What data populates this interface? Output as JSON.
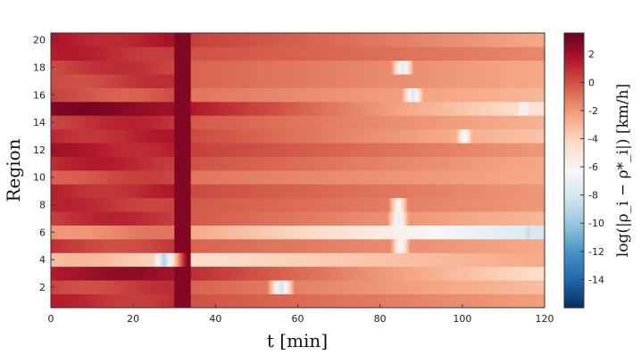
{
  "chart_data": {
    "type": "heatmap",
    "xlabel": "t [min]",
    "ylabel": "Region",
    "colorbar_label": "log(|ρ_i − ρ*_i|) [km/h]",
    "xlim": [
      0,
      120
    ],
    "ylim": [
      0.5,
      20.5
    ],
    "x_ticks": [
      0,
      20,
      40,
      60,
      80,
      100,
      120
    ],
    "y_ticks": [
      2,
      4,
      6,
      8,
      10,
      12,
      14,
      16,
      18,
      20
    ],
    "color_range": [
      -16,
      3.5
    ],
    "colorbar_ticks": [
      2,
      0,
      -2,
      -4,
      -6,
      -8,
      -10,
      -12,
      -14
    ],
    "colormap": [
      "#053061",
      "#2166ac",
      "#4393c3",
      "#92c5de",
      "#d1e5f0",
      "#f7f7f7",
      "#fddbc7",
      "#f4a582",
      "#d6604d",
      "#b2182b",
      "#67001f"
    ],
    "regions": [
      {
        "region": 1,
        "start": 1.0,
        "end": -2.2,
        "dips": []
      },
      {
        "region": 2,
        "start": 0.5,
        "end": -3.2,
        "dips": [
          [
            56,
            -8.5
          ]
        ]
      },
      {
        "region": 3,
        "start": 2.0,
        "end": -4.5,
        "dips": []
      },
      {
        "region": 4,
        "start": -3.5,
        "end": -2.5,
        "dips": [
          [
            27.5,
            -9.5
          ]
        ]
      },
      {
        "region": 5,
        "start": 0.5,
        "end": -2.5,
        "dips": [
          [
            85,
            -7.0
          ]
        ]
      },
      {
        "region": 6,
        "start": -1.5,
        "end": -8.0,
        "dips": [
          [
            116,
            -9.0
          ]
        ]
      },
      {
        "region": 7,
        "start": 0.8,
        "end": -3.0,
        "dips": [
          [
            84.5,
            -7.5
          ]
        ]
      },
      {
        "region": 8,
        "start": 0.8,
        "end": -2.0,
        "dips": [
          [
            84.5,
            -6.5
          ]
        ]
      },
      {
        "region": 9,
        "start": 1.2,
        "end": -2.0,
        "dips": []
      },
      {
        "region": 10,
        "start": 0.0,
        "end": -2.5,
        "dips": []
      },
      {
        "region": 11,
        "start": 1.0,
        "end": -2.5,
        "dips": []
      },
      {
        "region": 12,
        "start": 1.5,
        "end": -2.0,
        "dips": []
      },
      {
        "region": 13,
        "start": 1.2,
        "end": -3.5,
        "dips": [
          [
            100.5,
            -7.0
          ]
        ]
      },
      {
        "region": 14,
        "start": 0.8,
        "end": -2.8,
        "dips": []
      },
      {
        "region": 15,
        "start": 2.6,
        "end": -5.0,
        "dips": [
          [
            115,
            -7.5
          ]
        ]
      },
      {
        "region": 16,
        "start": 0.0,
        "end": -3.0,
        "dips": [
          [
            88,
            -8.0
          ]
        ]
      },
      {
        "region": 17,
        "start": 0.5,
        "end": -2.5,
        "dips": []
      },
      {
        "region": 18,
        "start": 0.5,
        "end": -2.5,
        "dips": [
          [
            85.5,
            -7.8
          ]
        ]
      },
      {
        "region": 19,
        "start": 1.0,
        "end": -1.5,
        "dips": []
      },
      {
        "region": 20,
        "start": 1.5,
        "end": -2.5,
        "dips": []
      }
    ]
  }
}
